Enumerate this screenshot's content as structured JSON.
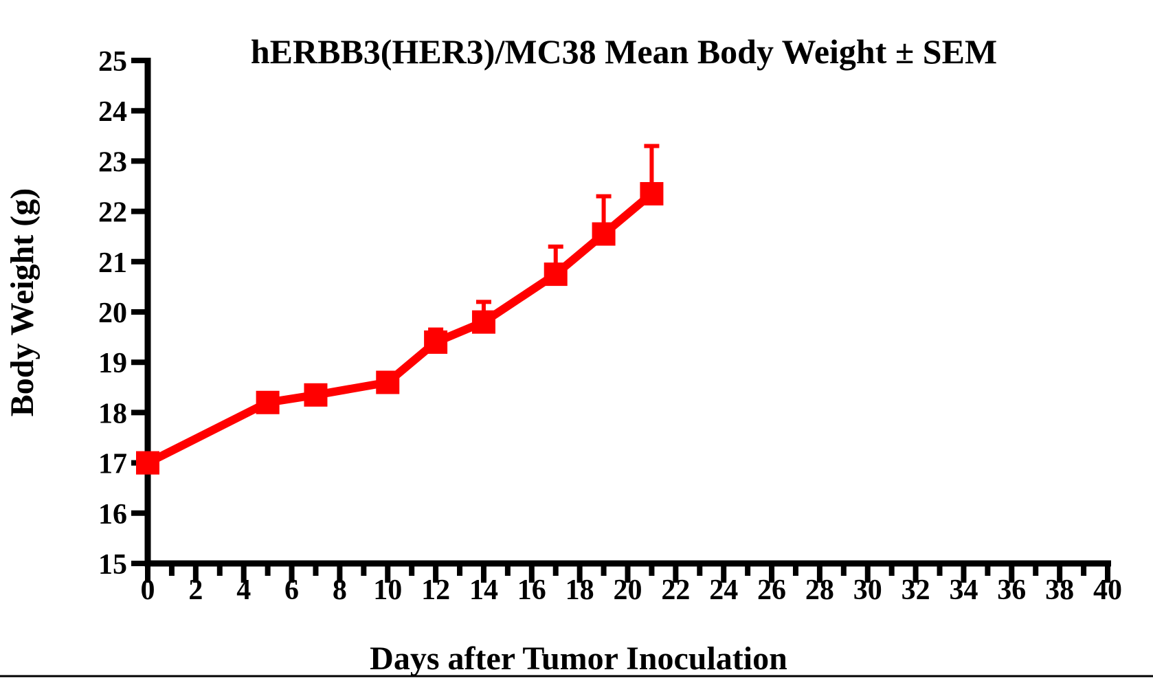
{
  "chart_data": {
    "type": "line",
    "title": "hERBB3(HER3)/MC38 Mean Body Weight ± SEM",
    "xlabel": "Days after Tumor Inoculation",
    "ylabel": "Body Weight (g)",
    "xlim": [
      0,
      40
    ],
    "ylim": [
      15,
      25
    ],
    "x_major_ticks": [
      0,
      2,
      4,
      6,
      8,
      10,
      12,
      14,
      16,
      18,
      20,
      22,
      24,
      26,
      28,
      30,
      32,
      34,
      36,
      38,
      40
    ],
    "x_minor_tick_step": 1,
    "y_ticks": [
      15,
      16,
      17,
      18,
      19,
      20,
      21,
      22,
      23,
      24,
      25
    ],
    "grid": false,
    "legend_position": "none",
    "error_bar_direction": "upper",
    "series": [
      {
        "name": "hERBB3(HER3)/MC38",
        "color": "#FF0000",
        "marker": "square",
        "x": [
          0,
          5,
          7,
          10,
          12,
          14,
          17,
          19,
          21
        ],
        "y": [
          17.0,
          18.2,
          18.35,
          18.6,
          19.4,
          19.8,
          20.75,
          21.55,
          22.35
        ],
        "sem_upper": [
          0,
          0,
          0,
          0,
          0.25,
          0.4,
          0.55,
          0.75,
          0.95
        ]
      }
    ],
    "colors": {
      "axis": "#000000",
      "text": "#000000",
      "series": "#FF0000",
      "bottom_rule": "#000000"
    }
  }
}
